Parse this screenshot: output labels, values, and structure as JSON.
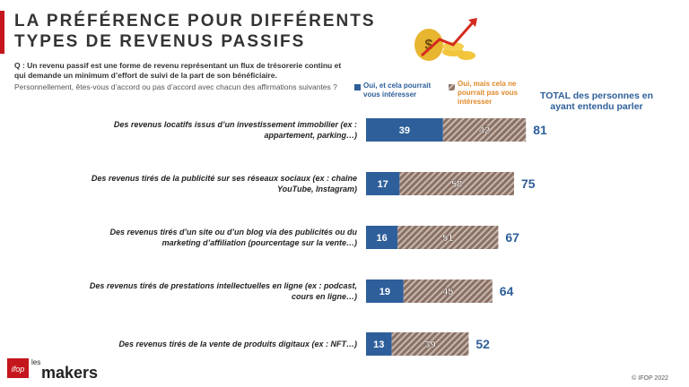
{
  "chart_data": {
    "type": "stacked-bar-horizontal",
    "title": "LA PRÉFÉRENCE POUR DIFFÉRENTS TYPES DE REVENUS PASSIFS",
    "question": "Q : Un revenu passif est une forme de revenu représentant un flux de trésorerie continu et qui demande un minimum d’effort de suivi de la part de son bénéficiaire.",
    "subquestion": "Personnellement, êtes-vous d’accord ou pas d’accord avec chacun des affirmations suivantes ?",
    "categories": [
      "Des revenus locatifs issus d’un investissement immobilier (ex : appartement, parking…)",
      "Des revenus tirés de la publicité sur ses réseaux sociaux (ex : chaîne YouTube, Instagram)",
      "Des revenus tirés d’un site ou d’un blog via des publicités ou du marketing d’affiliation (pourcentage sur la vente…)",
      "Des revenus tirés de prestations intellectuelles en ligne (ex : podcast, cours en ligne…)",
      "Des revenus tirés de la vente de produits digitaux (ex : NFT…)"
    ],
    "series": [
      {
        "name": "Oui, et cela pourrait vous intéresser",
        "color": "#2e5f9a",
        "values": [
          39,
          17,
          16,
          19,
          13
        ]
      },
      {
        "name": "Oui, mais cela ne pourrait pas vous intéresser",
        "color": "#8a7166",
        "values": [
          42,
          58,
          51,
          45,
          39
        ]
      }
    ],
    "total_label": "TOTAL des personnes en ayant entendu parler",
    "totals": [
      81,
      75,
      67,
      64,
      52
    ],
    "logo": [
      "ifop",
      "les",
      "makers"
    ],
    "footer": "© IFOP 2022"
  }
}
